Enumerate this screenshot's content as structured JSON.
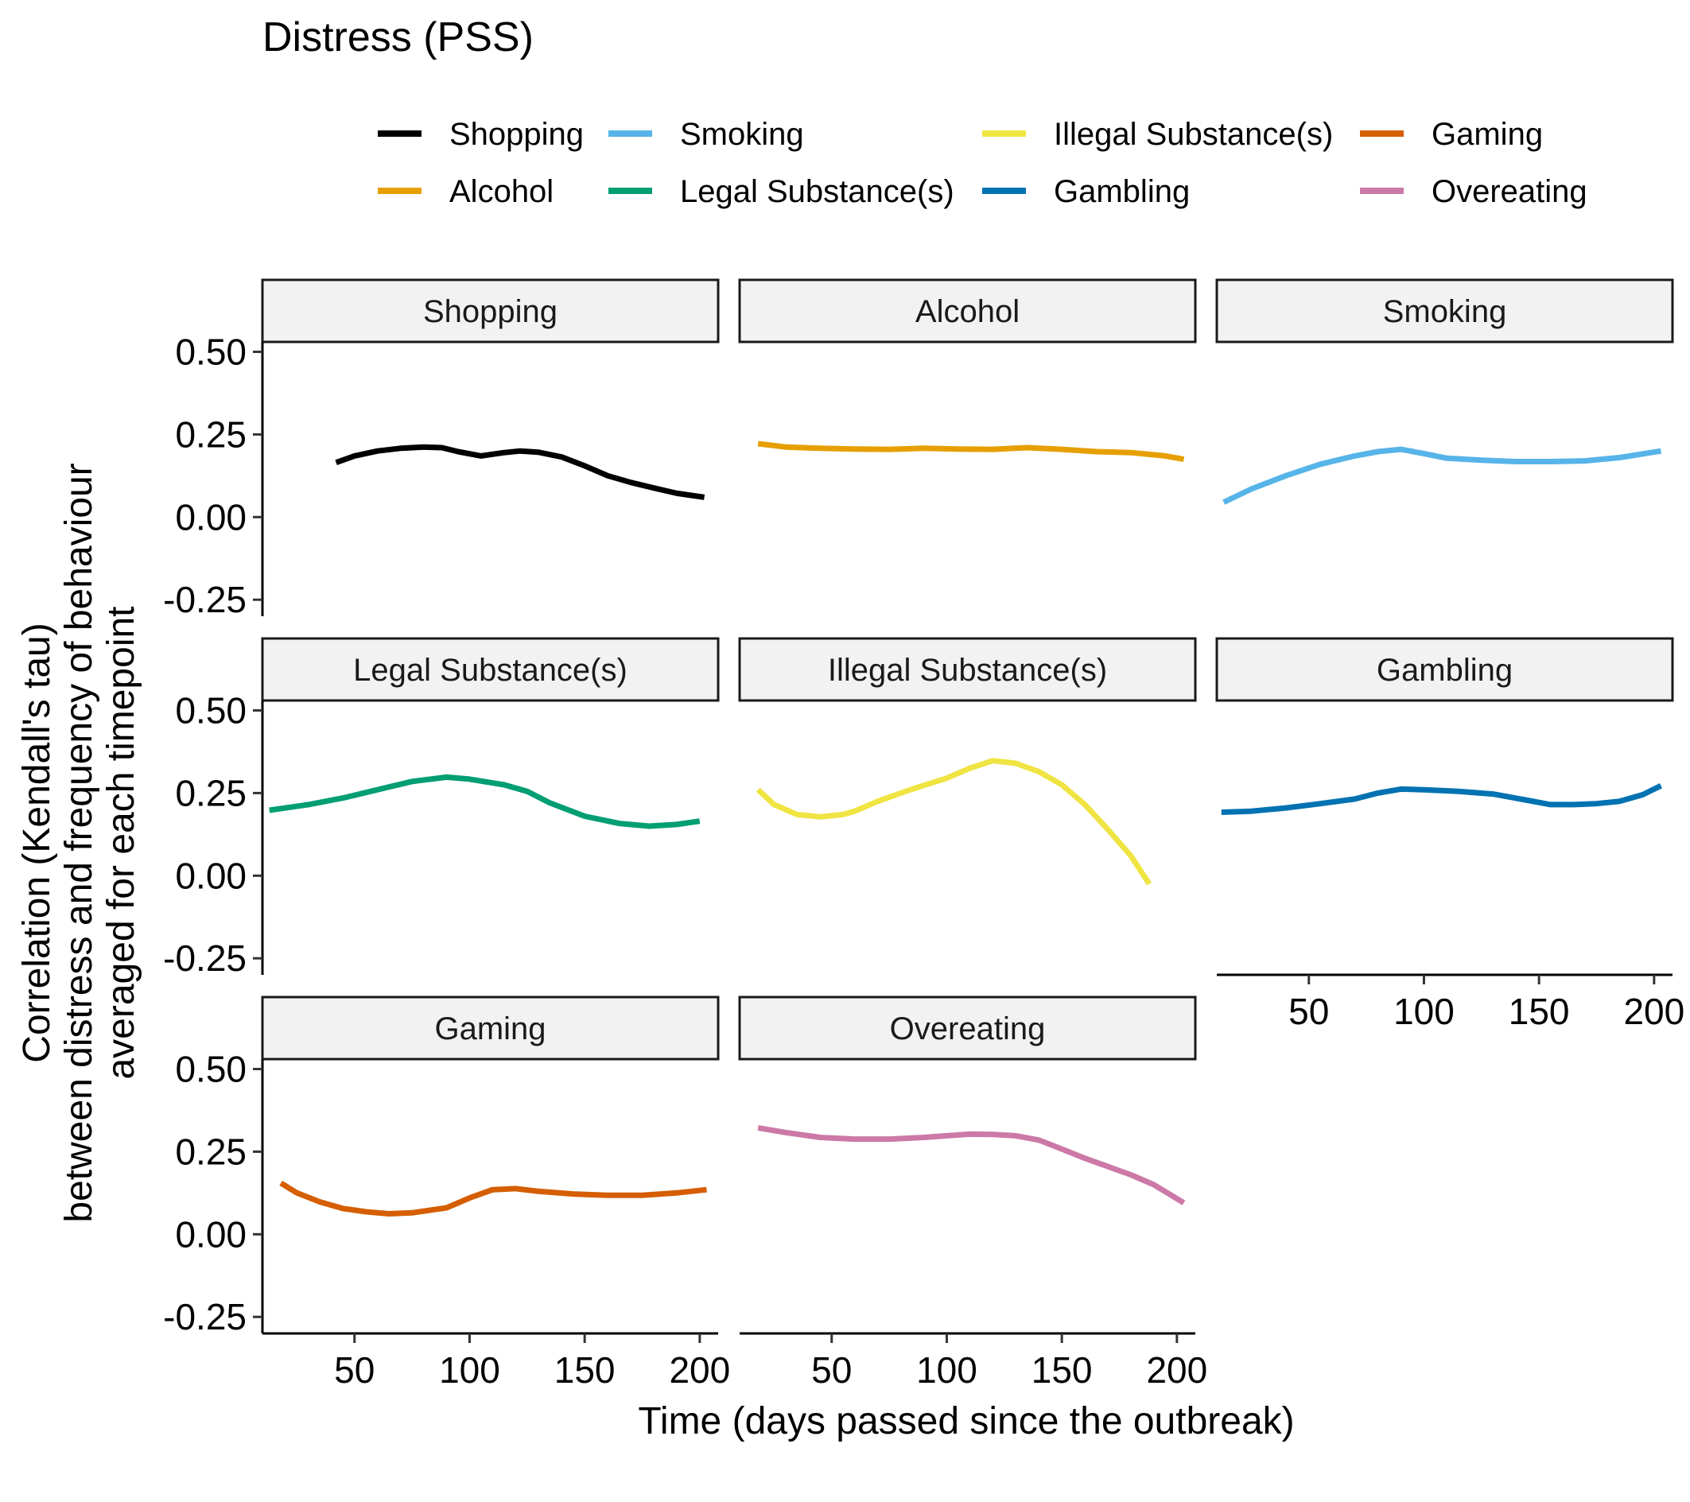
{
  "chart_data": {
    "type": "line",
    "title": "Distress (PSS)",
    "xlabel": "Time (days passed since the outbreak)",
    "ylabel_lines": [
      "Correlation (Kendall's tau)",
      "between distress and frequency of behaviour",
      "averaged for each timepoint"
    ],
    "xlim": [
      10,
      208
    ],
    "ylim": [
      -0.3,
      0.53
    ],
    "x_ticks": [
      50,
      100,
      150,
      200
    ],
    "x_tick_labels": [
      "50",
      "100",
      "150",
      "200"
    ],
    "y_ticks": [
      0.5,
      0.25,
      0.0,
      -0.25
    ],
    "y_tick_labels": [
      "0.50",
      "0.25",
      "0.00",
      "-0.25"
    ],
    "grid": false,
    "legend_position": "top",
    "series": [
      {
        "name": "Shopping",
        "color": "#000000",
        "x": [
          42,
          50,
          60,
          70,
          80,
          88,
          95,
          105,
          115,
          122,
          130,
          140,
          150,
          160,
          170,
          180,
          190,
          202
        ],
        "y": [
          0.165,
          0.185,
          0.2,
          0.208,
          0.212,
          0.21,
          0.198,
          0.185,
          0.195,
          0.2,
          0.196,
          0.182,
          0.155,
          0.125,
          0.105,
          0.088,
          0.072,
          0.06
        ]
      },
      {
        "name": "Alcohol",
        "color": "#E69F00",
        "x": [
          18,
          30,
          45,
          60,
          75,
          90,
          105,
          120,
          135,
          150,
          165,
          180,
          195,
          203
        ],
        "y": [
          0.222,
          0.212,
          0.208,
          0.206,
          0.205,
          0.208,
          0.206,
          0.205,
          0.21,
          0.205,
          0.198,
          0.195,
          0.185,
          0.175
        ]
      },
      {
        "name": "Smoking",
        "color": "#56B4E9",
        "x": [
          13,
          25,
          40,
          55,
          70,
          80,
          90,
          100,
          110,
          125,
          140,
          155,
          170,
          185,
          203
        ],
        "y": [
          0.045,
          0.085,
          0.125,
          0.16,
          0.185,
          0.198,
          0.205,
          0.192,
          0.178,
          0.172,
          0.168,
          0.168,
          0.17,
          0.18,
          0.2
        ]
      },
      {
        "name": "Legal Substance(s)",
        "color": "#009E73",
        "x": [
          13,
          30,
          45,
          60,
          75,
          90,
          100,
          115,
          125,
          135,
          150,
          165,
          178,
          190,
          200
        ],
        "y": [
          0.198,
          0.215,
          0.235,
          0.26,
          0.285,
          0.298,
          0.292,
          0.275,
          0.255,
          0.22,
          0.18,
          0.158,
          0.15,
          0.155,
          0.165
        ]
      },
      {
        "name": "Illegal Substance(s)",
        "color": "#F0E442",
        "x": [
          18,
          25,
          35,
          45,
          55,
          60,
          70,
          85,
          100,
          110,
          120,
          130,
          140,
          150,
          160,
          170,
          180,
          188
        ],
        "y": [
          0.26,
          0.215,
          0.185,
          0.178,
          0.185,
          0.195,
          0.225,
          0.262,
          0.295,
          0.325,
          0.348,
          0.34,
          0.315,
          0.275,
          0.215,
          0.14,
          0.06,
          -0.025
        ]
      },
      {
        "name": "Gambling",
        "color": "#0072B2",
        "x": [
          12,
          25,
          40,
          55,
          70,
          80,
          90,
          100,
          115,
          130,
          145,
          155,
          165,
          175,
          185,
          195,
          203
        ],
        "y": [
          0.192,
          0.195,
          0.205,
          0.218,
          0.232,
          0.25,
          0.262,
          0.26,
          0.255,
          0.247,
          0.228,
          0.215,
          0.215,
          0.218,
          0.225,
          0.245,
          0.272
        ]
      },
      {
        "name": "Gaming",
        "color": "#D55E00",
        "x": [
          18,
          25,
          35,
          45,
          55,
          65,
          75,
          90,
          100,
          110,
          120,
          130,
          145,
          160,
          175,
          190,
          203
        ],
        "y": [
          0.155,
          0.125,
          0.098,
          0.078,
          0.068,
          0.062,
          0.065,
          0.08,
          0.11,
          0.135,
          0.138,
          0.13,
          0.122,
          0.118,
          0.118,
          0.125,
          0.135
        ]
      },
      {
        "name": "Overeating",
        "color": "#CC79A7",
        "x": [
          18,
          30,
          45,
          60,
          75,
          90,
          100,
          110,
          120,
          130,
          140,
          150,
          160,
          170,
          180,
          190,
          203
        ],
        "y": [
          0.322,
          0.308,
          0.293,
          0.288,
          0.288,
          0.293,
          0.298,
          0.303,
          0.302,
          0.298,
          0.285,
          0.258,
          0.23,
          0.205,
          0.18,
          0.15,
          0.095
        ]
      }
    ]
  }
}
